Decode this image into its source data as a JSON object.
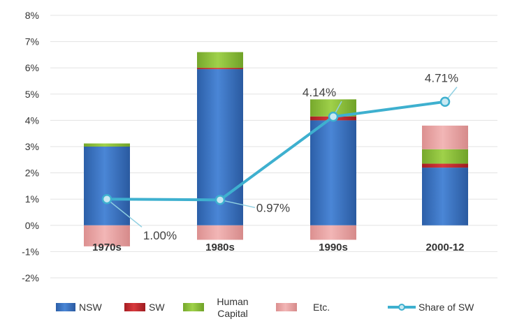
{
  "chart_data": {
    "type": "bar",
    "stacked": true,
    "categories": [
      "1970s",
      "1980s",
      "1990s",
      "2000-12"
    ],
    "ylim": [
      -2,
      8
    ],
    "yticks": [
      -2,
      -1,
      0,
      1,
      2,
      3,
      4,
      5,
      6,
      7,
      8
    ],
    "ytick_labels": [
      "-2%",
      "-1%",
      "0%",
      "1%",
      "2%",
      "3%",
      "4%",
      "5%",
      "6%",
      "7%",
      "8%"
    ],
    "grid": true,
    "legend_position": "bottom",
    "series": [
      {
        "name": "NSW",
        "color": "#3a72c4",
        "values": [
          3.0,
          5.95,
          4.0,
          2.2
        ]
      },
      {
        "name": "SW",
        "color": "#c0262b",
        "values": [
          0.0,
          0.05,
          0.15,
          0.15
        ]
      },
      {
        "name": "Human Capital",
        "legend_lines": [
          "Human",
          "Capital"
        ],
        "color": "#8cbf3c",
        "values": [
          0.12,
          0.6,
          0.65,
          0.55
        ]
      },
      {
        "name": "Etc.",
        "color": "#e8a3a3",
        "values": [
          -0.8,
          -0.55,
          -0.55,
          0.9
        ]
      }
    ],
    "line_series": {
      "name": "Share of SW",
      "color": "#3eb0cf",
      "values": [
        1.0,
        0.97,
        4.14,
        4.71
      ],
      "labels": [
        "1.00%",
        "0.97%",
        "4.14%",
        "4.71%"
      ]
    }
  }
}
